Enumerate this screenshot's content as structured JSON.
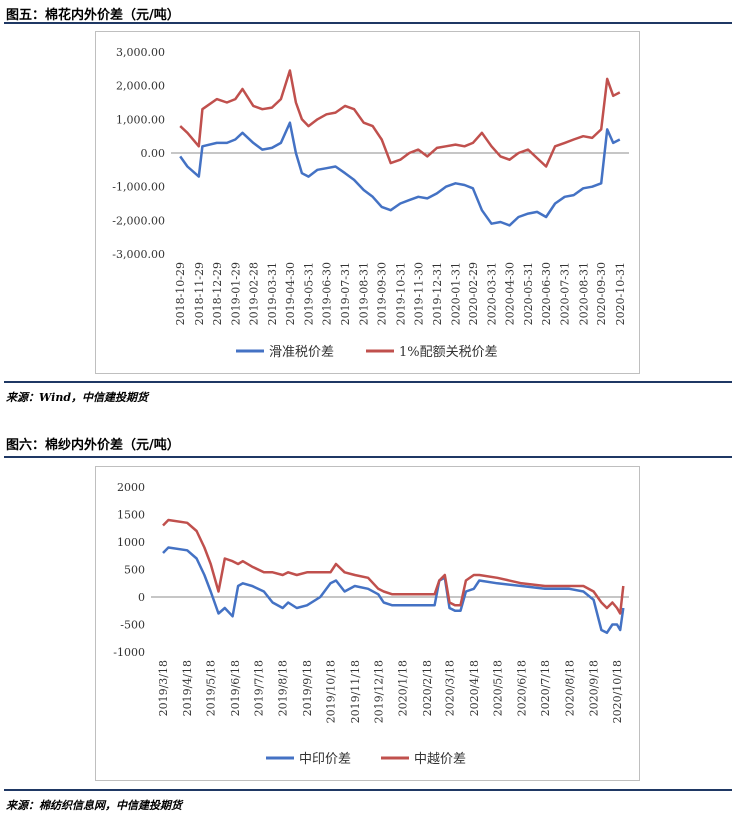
{
  "figure5": {
    "title": "图五：棉花内外价差（元/吨）",
    "source": "来源：Wind，中信建投期货"
  },
  "figure6": {
    "title": "图六：棉纱内外价差（元/吨）",
    "source": "来源：棉纺织信息网，中信建投期货"
  },
  "chart_data": [
    {
      "type": "line",
      "title": "",
      "xlabel": "",
      "ylabel": "",
      "ylim": [
        -3000,
        3000
      ],
      "yticks": [
        "3,000.00",
        "2,000.00",
        "1,000.00",
        "0.00",
        "-1,000.00",
        "-2,000.00",
        "-3,000.00"
      ],
      "ytick_values": [
        3000,
        2000,
        1000,
        0,
        -1000,
        -2000,
        -3000
      ],
      "xticks": [
        "2018-10-29",
        "2018-11-29",
        "2018-12-29",
        "2019-01-29",
        "2019-02-28",
        "2019-03-31",
        "2019-04-30",
        "2019-05-31",
        "2019-06-30",
        "2019-07-31",
        "2019-08-31",
        "2019-09-30",
        "2019-10-31",
        "2019-11-30",
        "2019-12-31",
        "2020-01-31",
        "2020-02-29",
        "2020-03-31",
        "2020-04-30",
        "2020-05-31",
        "2020-06-30",
        "2020-07-31",
        "2020-08-31",
        "2020-09-30",
        "2020-10-31"
      ],
      "legend_position": "bottom",
      "grid": false,
      "series": [
        {
          "name": "滑准税价差",
          "color": "#4472c4",
          "x": [
            "2018-10-29",
            "2018-11-10",
            "2018-11-29",
            "2018-12-05",
            "2018-12-29",
            "2019-01-15",
            "2019-01-29",
            "2019-02-10",
            "2019-02-28",
            "2019-03-15",
            "2019-03-31",
            "2019-04-15",
            "2019-04-30",
            "2019-05-10",
            "2019-05-20",
            "2019-05-31",
            "2019-06-15",
            "2019-06-30",
            "2019-07-15",
            "2019-07-31",
            "2019-08-15",
            "2019-08-31",
            "2019-09-15",
            "2019-09-30",
            "2019-10-15",
            "2019-10-31",
            "2019-11-15",
            "2019-11-30",
            "2019-12-15",
            "2019-12-31",
            "2020-01-15",
            "2020-01-31",
            "2020-02-15",
            "2020-02-29",
            "2020-03-15",
            "2020-03-31",
            "2020-04-15",
            "2020-04-30",
            "2020-05-15",
            "2020-05-31",
            "2020-06-15",
            "2020-06-30",
            "2020-07-15",
            "2020-07-31",
            "2020-08-15",
            "2020-08-31",
            "2020-09-15",
            "2020-09-30",
            "2020-10-10",
            "2020-10-20",
            "2020-10-31"
          ],
          "values": [
            -100,
            -400,
            -700,
            200,
            300,
            300,
            400,
            600,
            300,
            100,
            150,
            300,
            900,
            0,
            -600,
            -700,
            -500,
            -450,
            -400,
            -600,
            -800,
            -1100,
            -1300,
            -1600,
            -1700,
            -1500,
            -1400,
            -1300,
            -1350,
            -1200,
            -1000,
            -900,
            -950,
            -1050,
            -1700,
            -2100,
            -2050,
            -2150,
            -1900,
            -1800,
            -1750,
            -1900,
            -1500,
            -1300,
            -1250,
            -1050,
            -1000,
            -900,
            700,
            300,
            400
          ]
        },
        {
          "name": "1%配额关税价差",
          "color": "#c0504d",
          "x": [
            "2018-10-29",
            "2018-11-10",
            "2018-11-29",
            "2018-12-05",
            "2018-12-29",
            "2019-01-15",
            "2019-01-29",
            "2019-02-10",
            "2019-02-28",
            "2019-03-15",
            "2019-03-31",
            "2019-04-15",
            "2019-04-30",
            "2019-05-10",
            "2019-05-20",
            "2019-05-31",
            "2019-06-15",
            "2019-06-30",
            "2019-07-15",
            "2019-07-31",
            "2019-08-15",
            "2019-08-31",
            "2019-09-15",
            "2019-09-30",
            "2019-10-15",
            "2019-10-31",
            "2019-11-15",
            "2019-11-30",
            "2019-12-15",
            "2019-12-31",
            "2020-01-15",
            "2020-01-31",
            "2020-02-15",
            "2020-02-29",
            "2020-03-15",
            "2020-03-31",
            "2020-04-15",
            "2020-04-30",
            "2020-05-15",
            "2020-05-31",
            "2020-06-15",
            "2020-06-30",
            "2020-07-15",
            "2020-07-31",
            "2020-08-15",
            "2020-08-31",
            "2020-09-15",
            "2020-09-30",
            "2020-10-10",
            "2020-10-20",
            "2020-10-31"
          ],
          "values": [
            800,
            600,
            200,
            1300,
            1600,
            1500,
            1600,
            1900,
            1400,
            1300,
            1350,
            1600,
            2450,
            1500,
            1000,
            800,
            1000,
            1150,
            1200,
            1400,
            1300,
            900,
            800,
            400,
            -300,
            -200,
            0,
            100,
            -100,
            150,
            200,
            250,
            200,
            300,
            600,
            200,
            -100,
            -200,
            0,
            100,
            -150,
            -400,
            200,
            300,
            400,
            500,
            450,
            700,
            2200,
            1700,
            1800
          ]
        }
      ]
    },
    {
      "type": "line",
      "title": "",
      "xlabel": "",
      "ylabel": "",
      "ylim": [
        -1000,
        2000
      ],
      "yticks": [
        "2000",
        "1500",
        "1000",
        "500",
        "0",
        "-500",
        "-1000"
      ],
      "ytick_values": [
        2000,
        1500,
        1000,
        500,
        0,
        -500,
        -1000
      ],
      "xticks": [
        "2019/3/18",
        "2019/4/18",
        "2019/5/18",
        "2019/6/18",
        "2019/7/18",
        "2019/8/18",
        "2019/9/18",
        "2019/10/18",
        "2019/11/18",
        "2019/12/18",
        "2020/1/18",
        "2020/2/18",
        "2020/3/18",
        "2020/4/18",
        "2020/5/18",
        "2020/6/18",
        "2020/7/18",
        "2020/8/18",
        "2020/9/18",
        "2020/10/18"
      ],
      "legend_position": "bottom",
      "grid": false,
      "series": [
        {
          "name": "中印价差",
          "color": "#4472c4",
          "x": [
            "2019-03-18",
            "2019-03-25",
            "2019-04-18",
            "2019-04-30",
            "2019-05-10",
            "2019-05-18",
            "2019-05-28",
            "2019-06-05",
            "2019-06-15",
            "2019-06-22",
            "2019-06-28",
            "2019-07-10",
            "2019-07-25",
            "2019-08-05",
            "2019-08-18",
            "2019-08-25",
            "2019-09-05",
            "2019-09-18",
            "2019-10-05",
            "2019-10-18",
            "2019-10-25",
            "2019-11-05",
            "2019-11-18",
            "2019-12-05",
            "2019-12-18",
            "2019-12-25",
            "2020-01-05",
            "2020-01-18",
            "2020-02-05",
            "2020-02-18",
            "2020-02-28",
            "2020-03-05",
            "2020-03-12",
            "2020-03-18",
            "2020-03-25",
            "2020-04-01",
            "2020-04-08",
            "2020-04-18",
            "2020-04-25",
            "2020-05-18",
            "2020-06-18",
            "2020-07-18",
            "2020-08-18",
            "2020-09-05",
            "2020-09-18",
            "2020-09-28",
            "2020-10-05",
            "2020-10-12",
            "2020-10-18",
            "2020-10-22",
            "2020-10-26"
          ],
          "values": [
            800,
            900,
            850,
            700,
            400,
            100,
            -300,
            -200,
            -350,
            200,
            250,
            200,
            100,
            -100,
            -200,
            -100,
            -200,
            -150,
            0,
            250,
            300,
            100,
            200,
            150,
            50,
            -100,
            -150,
            -150,
            -150,
            -150,
            -150,
            300,
            350,
            -200,
            -250,
            -250,
            100,
            150,
            300,
            250,
            200,
            150,
            150,
            100,
            -50,
            -600,
            -650,
            -500,
            -500,
            -600,
            -200
          ]
        },
        {
          "name": "中越价差",
          "color": "#c0504d",
          "x": [
            "2019-03-18",
            "2019-03-25",
            "2019-04-18",
            "2019-04-30",
            "2019-05-10",
            "2019-05-18",
            "2019-05-28",
            "2019-06-05",
            "2019-06-15",
            "2019-06-22",
            "2019-06-28",
            "2019-07-10",
            "2019-07-25",
            "2019-08-05",
            "2019-08-18",
            "2019-08-25",
            "2019-09-05",
            "2019-09-18",
            "2019-10-05",
            "2019-10-18",
            "2019-10-25",
            "2019-11-05",
            "2019-11-18",
            "2019-12-05",
            "2019-12-18",
            "2019-12-25",
            "2020-01-05",
            "2020-01-18",
            "2020-02-05",
            "2020-02-18",
            "2020-02-28",
            "2020-03-05",
            "2020-03-12",
            "2020-03-18",
            "2020-03-25",
            "2020-04-01",
            "2020-04-08",
            "2020-04-18",
            "2020-04-25",
            "2020-05-18",
            "2020-06-18",
            "2020-07-18",
            "2020-08-18",
            "2020-09-05",
            "2020-09-18",
            "2020-09-28",
            "2020-10-05",
            "2020-10-12",
            "2020-10-18",
            "2020-10-22",
            "2020-10-26"
          ],
          "values": [
            1300,
            1400,
            1350,
            1200,
            900,
            600,
            100,
            700,
            650,
            600,
            650,
            550,
            450,
            450,
            400,
            450,
            400,
            450,
            450,
            450,
            600,
            450,
            400,
            350,
            150,
            100,
            50,
            50,
            50,
            50,
            50,
            300,
            400,
            -100,
            -150,
            -150,
            300,
            400,
            400,
            350,
            250,
            200,
            200,
            200,
            100,
            -100,
            -200,
            -100,
            -200,
            -300,
            200
          ]
        }
      ]
    }
  ]
}
